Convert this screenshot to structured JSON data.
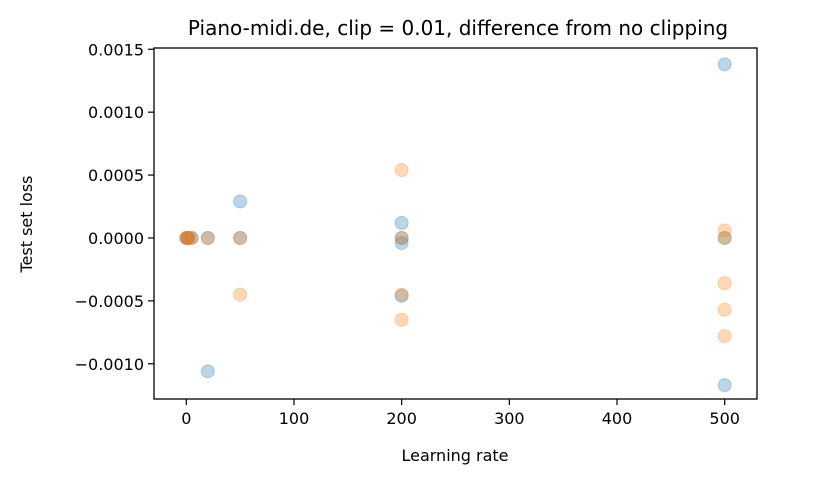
{
  "chart_data": {
    "type": "scatter",
    "title": "Piano-midi.de, clip = 0.01, difference from no clipping",
    "xlabel": "Learning rate",
    "ylabel": "Test set loss",
    "xlim": [
      -30,
      530
    ],
    "ylim": [
      -0.00128,
      0.00151
    ],
    "xticks": [
      0,
      100,
      200,
      300,
      400,
      500
    ],
    "xtick_labels": [
      "0",
      "100",
      "200",
      "300",
      "400",
      "500"
    ],
    "yticks": [
      -0.001,
      -0.0005,
      0.0,
      0.0005,
      0.001,
      0.0015
    ],
    "ytick_labels": [
      "−0.0010",
      "−0.0005",
      "0.0000",
      "0.0005",
      "0.0010",
      "0.0015"
    ],
    "grid": false,
    "series": [
      {
        "color": "#1f77b4",
        "alpha": 0.3,
        "points": [
          [
            0,
            0.0
          ],
          [
            1,
            0.0
          ],
          [
            2,
            0.0
          ],
          [
            5,
            0.0
          ],
          [
            20,
            0.0
          ],
          [
            20,
            -0.00106
          ],
          [
            50,
            0.00029
          ],
          [
            50,
            0.0
          ],
          [
            200,
            0.00012
          ],
          [
            200,
            0.0
          ],
          [
            200,
            -4e-05
          ],
          [
            200,
            -0.00046
          ],
          [
            500,
            0.00138
          ],
          [
            500,
            0.0
          ],
          [
            500,
            -0.00117
          ]
        ]
      },
      {
        "color": "#ff7f0e",
        "alpha": 0.3,
        "points": [
          [
            0,
            0.0
          ],
          [
            1,
            0.0
          ],
          [
            2,
            0.0
          ],
          [
            5,
            0.0
          ],
          [
            20,
            0.0
          ],
          [
            50,
            0.0
          ],
          [
            50,
            -0.00045
          ],
          [
            200,
            0.00054
          ],
          [
            200,
            0.0
          ],
          [
            200,
            -0.00045
          ],
          [
            200,
            -0.00065
          ],
          [
            500,
            6e-05
          ],
          [
            500,
            0.0
          ],
          [
            500,
            -0.00036
          ],
          [
            500,
            -0.00057
          ],
          [
            500,
            -0.00078
          ]
        ]
      }
    ]
  }
}
